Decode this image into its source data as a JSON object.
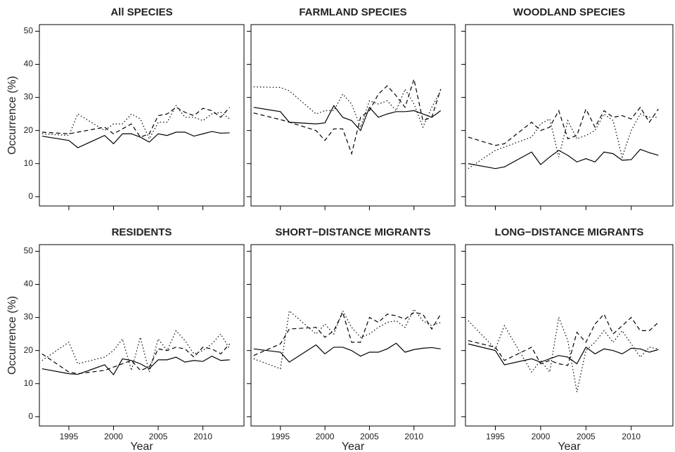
{
  "chart_data": [
    {
      "type": "line",
      "title": "All SPECIES",
      "ylabel": "Occurrence (%)",
      "x": [
        1992,
        1995,
        1996,
        1999,
        2000,
        2001,
        2002,
        2003,
        2004,
        2005,
        2006,
        2007,
        2008,
        2009,
        2010,
        2011,
        2012,
        2013
      ],
      "xlim": [
        1991.7,
        2014.6
      ],
      "xticks": [
        1995,
        2000,
        2005,
        2010
      ],
      "ylim": [
        -2.8,
        52
      ],
      "yticks": [
        0,
        10,
        20,
        30,
        40,
        50
      ],
      "series": [
        {
          "color": "#000000",
          "style": "solid",
          "values": [
            18.3,
            17,
            14.8,
            18.5,
            16,
            19,
            19,
            18,
            16.5,
            19,
            18.5,
            19.5,
            19.5,
            18.3,
            19,
            19.7,
            19.2,
            19.3
          ]
        },
        {
          "color": "#000000",
          "style": "dashed",
          "values": [
            19.5,
            19,
            19.5,
            21,
            19,
            20.5,
            22,
            18,
            19,
            24.5,
            25,
            27,
            25.5,
            24.5,
            26.7,
            26,
            24,
            27
          ]
        },
        {
          "color": "#000000",
          "style": "dotted",
          "values": [
            19,
            18.5,
            25,
            20,
            22,
            22,
            25,
            23.5,
            17.5,
            22.5,
            22.5,
            27.5,
            24,
            24,
            23,
            25,
            25.5,
            23.5
          ]
        }
      ]
    },
    {
      "type": "line",
      "title": "FARMLAND SPECIES",
      "x": [
        1992,
        1995,
        1996,
        1999,
        2000,
        2001,
        2002,
        2003,
        2004,
        2005,
        2006,
        2007,
        2008,
        2009,
        2010,
        2011,
        2012,
        2013
      ],
      "xlim": [
        1991.7,
        2014.6
      ],
      "xticks": [
        1995,
        2000,
        2005,
        2010
      ],
      "ylim": [
        -2.8,
        52
      ],
      "yticks": [
        0,
        10,
        20,
        30,
        40,
        50
      ],
      "series": [
        {
          "color": "#000000",
          "style": "solid",
          "values": [
            27,
            25.7,
            22.5,
            22,
            22.3,
            27.5,
            24,
            23,
            20,
            27,
            24,
            25,
            25.7,
            25.7,
            26,
            25,
            24,
            26
          ]
        },
        {
          "color": "#000000",
          "style": "dashed",
          "values": [
            25.3,
            23.3,
            22.5,
            20,
            17,
            20.5,
            20.5,
            13,
            24,
            26,
            31,
            33.5,
            30.5,
            27,
            35.5,
            23,
            24,
            32.5
          ]
        },
        {
          "color": "#000000",
          "style": "dotted",
          "values": [
            33.2,
            33,
            32,
            25,
            26,
            26,
            31,
            28,
            21,
            29,
            28,
            29,
            26,
            32.5,
            28,
            21,
            27,
            32
          ]
        }
      ]
    },
    {
      "type": "line",
      "title": "WOODLAND SPECIES",
      "x": [
        1992,
        1995,
        1996,
        1999,
        2000,
        2001,
        2002,
        2003,
        2004,
        2005,
        2006,
        2007,
        2008,
        2009,
        2010,
        2011,
        2012,
        2013
      ],
      "xlim": [
        1991.7,
        2014.6
      ],
      "xticks": [
        1995,
        2000,
        2005,
        2010
      ],
      "ylim": [
        -2.8,
        52
      ],
      "yticks": [
        0,
        10,
        20,
        30,
        40,
        50
      ],
      "series": [
        {
          "color": "#000000",
          "style": "solid",
          "values": [
            10,
            8.5,
            9,
            13.5,
            9.7,
            12,
            14,
            12.5,
            10.5,
            11.5,
            10.5,
            13.5,
            13,
            11,
            11.2,
            14.3,
            13.3,
            12.5
          ]
        },
        {
          "color": "#000000",
          "style": "dashed",
          "values": [
            18,
            15.5,
            16,
            22.5,
            20,
            21,
            26,
            17.5,
            18.5,
            26.5,
            21,
            26,
            24,
            24.5,
            23.5,
            27,
            22.5,
            26.5
          ]
        },
        {
          "color": "#000000",
          "style": "dotted",
          "values": [
            8.5,
            14,
            15,
            18,
            22,
            23.5,
            12,
            23,
            17.5,
            18.5,
            20,
            25,
            23,
            12,
            20,
            25,
            24,
            24
          ]
        }
      ]
    },
    {
      "type": "line",
      "title": "RESIDENTS",
      "ylabel": "Occurrence (%)",
      "xlabel": "Year",
      "x": [
        1992,
        1995,
        1996,
        1999,
        2000,
        2001,
        2002,
        2003,
        2004,
        2005,
        2006,
        2007,
        2008,
        2009,
        2010,
        2011,
        2012,
        2013
      ],
      "xlim": [
        1991.7,
        2014.6
      ],
      "xticks": [
        1995,
        2000,
        2005,
        2010
      ],
      "ylim": [
        -2.8,
        52
      ],
      "yticks": [
        0,
        10,
        20,
        30,
        40,
        50
      ],
      "series": [
        {
          "color": "#000000",
          "style": "solid",
          "values": [
            14.5,
            13,
            12.8,
            15.7,
            12.7,
            17.5,
            17,
            16,
            14.5,
            17.2,
            17.2,
            18,
            16.5,
            17,
            16.7,
            18.3,
            17,
            17.2
          ]
        },
        {
          "color": "#000000",
          "style": "dashed",
          "values": [
            19,
            13.5,
            13,
            14,
            15,
            16,
            17,
            14,
            15,
            20.5,
            20,
            21,
            20.5,
            18,
            21,
            20.5,
            19,
            22
          ]
        },
        {
          "color": "#000000",
          "style": "dotted",
          "values": [
            17,
            22.5,
            16,
            18,
            20,
            23.5,
            14,
            24,
            13.5,
            23.5,
            20,
            26,
            23,
            19,
            20,
            22,
            25,
            20.5
          ]
        }
      ]
    },
    {
      "type": "line",
      "title": "SHORT−DISTANCE MIGRANTS",
      "xlabel": "Year",
      "x": [
        1992,
        1995,
        1996,
        1999,
        2000,
        2001,
        2002,
        2003,
        2004,
        2005,
        2006,
        2007,
        2008,
        2009,
        2010,
        2011,
        2012,
        2013
      ],
      "xlim": [
        1991.7,
        2014.6
      ],
      "xticks": [
        1995,
        2000,
        2005,
        2010
      ],
      "ylim": [
        -2.8,
        52
      ],
      "yticks": [
        0,
        10,
        20,
        30,
        40,
        50
      ],
      "series": [
        {
          "color": "#000000",
          "style": "solid",
          "values": [
            20.5,
            19.5,
            16.5,
            21.7,
            19,
            21,
            21,
            20,
            18.3,
            19.5,
            19.5,
            20.5,
            22.2,
            19.5,
            20.3,
            20.7,
            20.9,
            20.5
          ]
        },
        {
          "color": "#000000",
          "style": "dashed",
          "values": [
            18.5,
            22,
            26.5,
            27,
            24,
            26,
            31.5,
            22.5,
            22.5,
            30,
            28.5,
            31,
            30.5,
            29.5,
            31.5,
            31,
            26.5,
            31
          ]
        },
        {
          "color": "#000000",
          "style": "dotted",
          "values": [
            17.5,
            14.5,
            32,
            25,
            28,
            25,
            32,
            27,
            24,
            25,
            27,
            28.5,
            29,
            27,
            32.5,
            29,
            27.5,
            28.5
          ]
        }
      ]
    },
    {
      "type": "line",
      "title": "LONG−DISTANCE MIGRANTS",
      "xlabel": "Year",
      "x": [
        1992,
        1995,
        1996,
        1999,
        2000,
        2001,
        2002,
        2003,
        2004,
        2005,
        2006,
        2007,
        2008,
        2009,
        2010,
        2011,
        2012,
        2013
      ],
      "xlim": [
        1991.7,
        2014.6
      ],
      "xticks": [
        1995,
        2000,
        2005,
        2010
      ],
      "ylim": [
        -2.8,
        52
      ],
      "yticks": [
        0,
        10,
        20,
        30,
        40,
        50
      ],
      "series": [
        {
          "color": "#000000",
          "style": "solid",
          "values": [
            22,
            20,
            15.7,
            17.5,
            16.5,
            17.5,
            18.5,
            18,
            16,
            21,
            19,
            20.5,
            20,
            19,
            20.7,
            20.5,
            19.5,
            20.3
          ]
        },
        {
          "color": "#000000",
          "style": "dashed",
          "values": [
            23,
            21,
            17,
            21,
            16,
            17,
            16,
            15.5,
            25.5,
            22.5,
            28,
            31,
            25,
            27.5,
            30,
            26,
            26,
            28.5
          ]
        },
        {
          "color": "#000000",
          "style": "dotted",
          "values": [
            29,
            20.5,
            27.5,
            13.5,
            17,
            13.5,
            30,
            23,
            7.5,
            20,
            22.5,
            26,
            22.5,
            26,
            22,
            18,
            21,
            20.5
          ]
        }
      ]
    }
  ]
}
